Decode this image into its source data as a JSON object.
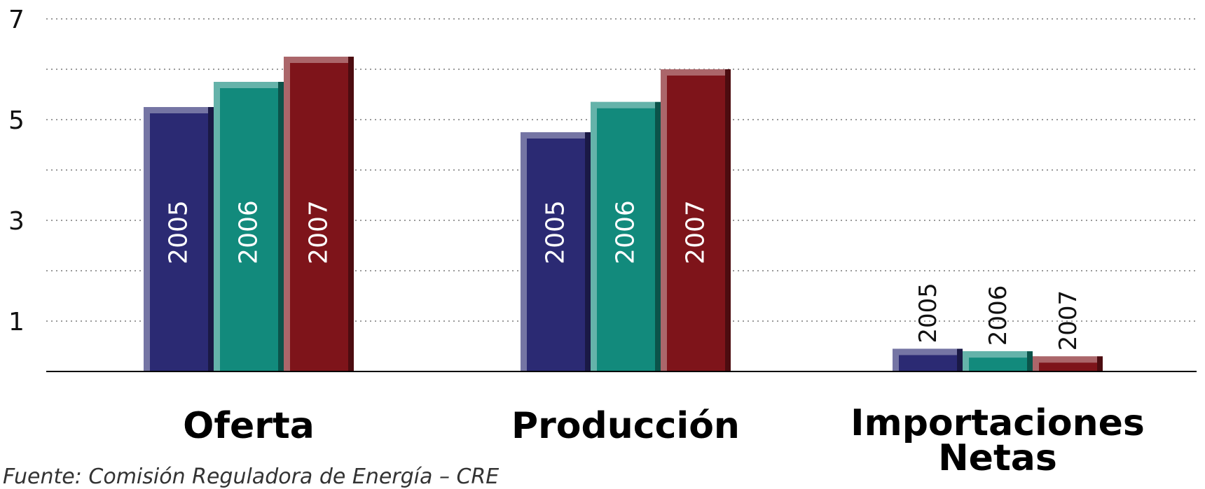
{
  "chart_data": {
    "type": "bar",
    "categories": [
      "Oferta",
      "Producción",
      "Importaciones Netas"
    ],
    "category_lines": [
      [
        "Oferta"
      ],
      [
        "Producción"
      ],
      [
        "Importaciones",
        "Netas"
      ]
    ],
    "series": [
      {
        "name": "2005",
        "values": [
          5.25,
          4.75,
          0.45
        ]
      },
      {
        "name": "2006",
        "values": [
          5.75,
          5.35,
          0.4
        ]
      },
      {
        "name": "2007",
        "values": [
          6.25,
          6.0,
          0.3
        ]
      }
    ],
    "colors": [
      "#2b2a73",
      "#128a7c",
      "#7e141a"
    ],
    "ylim": [
      0,
      7
    ],
    "yticks": [
      1,
      3,
      5,
      7
    ],
    "grid": true,
    "legend": "none; series names printed on each bar",
    "title": "",
    "xlabel": "",
    "ylabel": ""
  },
  "source": "Fuente: Comisión Reguladora de Energía – CRE"
}
